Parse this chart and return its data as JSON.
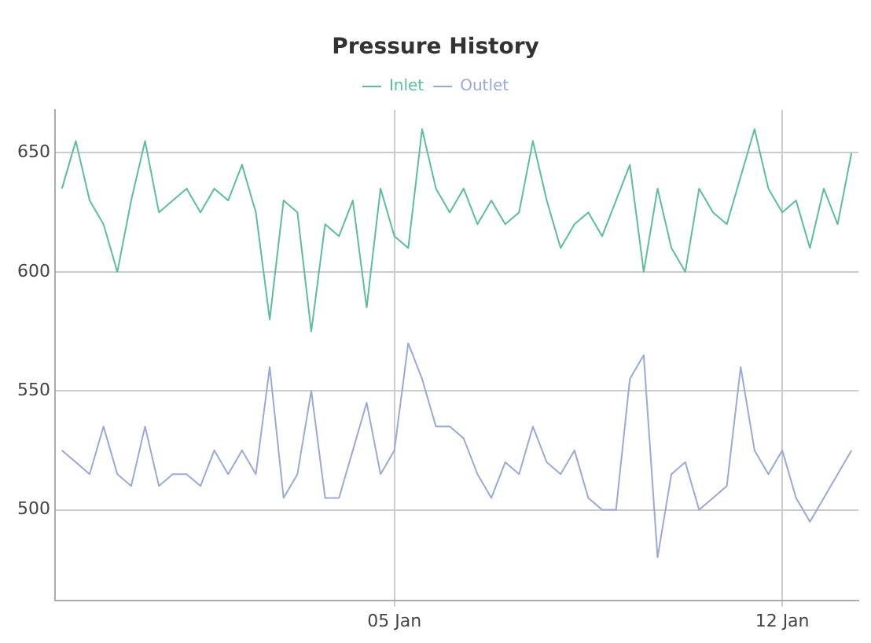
{
  "chart_data": {
    "type": "line",
    "title": "Pressure History",
    "legend": "top",
    "grid": true,
    "marker": "none",
    "line_style": "solid",
    "categories": [
      null,
      null,
      null,
      null,
      null,
      null,
      null,
      null,
      null,
      null,
      null,
      null,
      null,
      null,
      null,
      null,
      null,
      null,
      null,
      null,
      null,
      null,
      null,
      null,
      "05 Jan",
      null,
      null,
      null,
      null,
      null,
      null,
      null,
      null,
      null,
      null,
      null,
      null,
      null,
      null,
      null,
      null,
      null,
      null,
      null,
      null,
      null,
      null,
      null,
      null,
      null,
      null,
      null,
      "12 Jan",
      null,
      null,
      null,
      null,
      null
    ],
    "ylim": [
      462,
      668
    ],
    "yticks": [
      500,
      550,
      600,
      650
    ],
    "series": [
      {
        "name": "Inlet",
        "color": "#5cbf9a",
        "values": [
          635,
          655,
          630,
          620,
          600,
          630,
          655,
          625,
          630,
          635,
          625,
          635,
          630,
          645,
          625,
          580,
          630,
          625,
          575,
          620,
          615,
          630,
          585,
          635,
          615,
          610,
          660,
          635,
          625,
          635,
          620,
          630,
          620,
          625,
          655,
          630,
          610,
          620,
          625,
          615,
          630,
          645,
          600,
          635,
          610,
          600,
          635,
          625,
          620,
          640,
          660,
          635,
          625,
          630,
          610,
          635,
          620,
          650
        ]
      },
      {
        "name": "Outlet",
        "color": "#9aaad8",
        "values": [
          525,
          520,
          515,
          535,
          515,
          510,
          535,
          510,
          515,
          515,
          510,
          525,
          515,
          525,
          515,
          560,
          505,
          515,
          550,
          505,
          505,
          525,
          545,
          515,
          525,
          570,
          555,
          535,
          535,
          530,
          515,
          505,
          520,
          515,
          535,
          520,
          515,
          525,
          505,
          500,
          500,
          555,
          565,
          480,
          515,
          520,
          500,
          505,
          510,
          560,
          525,
          515,
          525,
          505,
          495,
          505,
          515,
          525
        ]
      }
    ]
  }
}
